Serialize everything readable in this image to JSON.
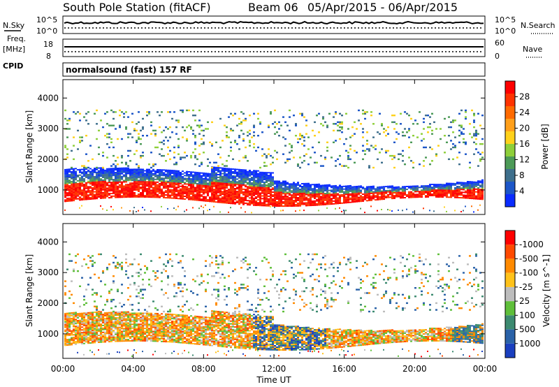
{
  "title": {
    "station": "South Pole Station (fitACF)",
    "beam": "Beam 06",
    "dates": "05/Apr/2015 - 06/Apr/2015"
  },
  "top_panels": {
    "nsky_label": "N.Sky",
    "nsky_ticks": [
      "10^5",
      "10^0"
    ],
    "nsearch_label": "N.Search",
    "nsearch_ticks": [
      "10^5",
      "10^0"
    ],
    "freq_label": "Freq.",
    "freq_unit": "[MHz]",
    "freq_ticks": [
      "18",
      "8"
    ],
    "nave_label": "Nave",
    "nave_ticks": [
      "60",
      "0"
    ],
    "cpid_label": "CPID",
    "cpid_value": "normalsound (fast) 157 RF"
  },
  "chart_data": [
    {
      "type": "heatmap",
      "name": "power-panel",
      "xlabel": "",
      "ylabel": "Slant Range [km]",
      "yticks": [
        "1000",
        "2000",
        "3000",
        "4000"
      ],
      "ylim": [
        200,
        4600
      ],
      "xlim": [
        "00:00",
        "24:00"
      ],
      "colorbar": {
        "label": "Power [dB]",
        "ticks": [
          "4",
          "8",
          "12",
          "16",
          "20",
          "24",
          "28"
        ],
        "colors": [
          "#0a2bff",
          "#1c56c8",
          "#3e6f8c",
          "#4c9a57",
          "#8ecf3a",
          "#ffd11a",
          "#ff9f1a",
          "#ff6a00",
          "#ff3300",
          "#ff0000"
        ]
      },
      "description_values": {
        "main_band_km": [
          550,
          1500
        ],
        "scatter_band_km": [
          1700,
          3600
        ]
      }
    },
    {
      "type": "heatmap",
      "name": "velocity-panel",
      "xlabel": "Time UT",
      "ylabel": "Slant Range [km]",
      "yticks": [
        "1000",
        "2000",
        "3000",
        "4000"
      ],
      "xticks": [
        "00:00",
        "04:00",
        "08:00",
        "12:00",
        "16:00",
        "20:00",
        "00:00"
      ],
      "ylim": [
        200,
        4600
      ],
      "xlim": [
        "00:00",
        "24:00"
      ],
      "colorbar": {
        "label": "Velocity [m s^-1]",
        "ticks": [
          "1000",
          "500",
          "100",
          "25",
          "-25",
          "-100",
          "-500",
          "-1000"
        ],
        "colors": [
          "#1a3fbf",
          "#2a62a8",
          "#3c8a70",
          "#5fbf3a",
          "#bdbdbd",
          "#ffc21a",
          "#ff8a00",
          "#ff4a00",
          "#ff0000"
        ]
      }
    }
  ]
}
